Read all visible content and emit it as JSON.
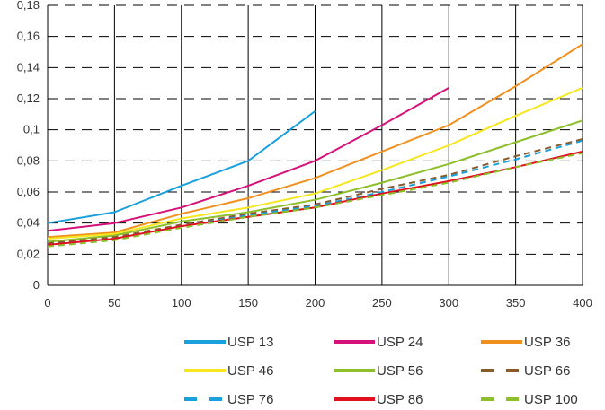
{
  "chart_data": {
    "type": "line",
    "title": "",
    "xlabel": "",
    "ylabel": "",
    "xlim": [
      0,
      400
    ],
    "ylim": [
      0,
      0.18
    ],
    "x_ticks": [
      "0",
      "50",
      "100",
      "150",
      "200",
      "250",
      "300",
      "350",
      "400"
    ],
    "y_ticks": [
      "0",
      "0,02",
      "0,04",
      "0,06",
      "0,08",
      "0,1",
      "0,12",
      "0,14",
      "0,16",
      "0,18"
    ],
    "grid": true,
    "legend_position": "bottom",
    "series": [
      {
        "name": "USP 13",
        "color": "#1aa0dc",
        "dashed": false,
        "x": [
          0,
          50,
          100,
          150,
          200
        ],
        "y": [
          0.04,
          0.047,
          0.064,
          0.08,
          0.112
        ]
      },
      {
        "name": "USP 24",
        "color": "#d6127a",
        "dashed": false,
        "x": [
          0,
          50,
          100,
          150,
          200,
          250,
          300
        ],
        "y": [
          0.035,
          0.04,
          0.05,
          0.064,
          0.08,
          0.103,
          0.127
        ]
      },
      {
        "name": "USP 36",
        "color": "#f0901e",
        "dashed": false,
        "x": [
          0,
          50,
          100,
          150,
          200,
          250,
          300,
          350,
          400
        ],
        "y": [
          0.031,
          0.034,
          0.046,
          0.056,
          0.069,
          0.086,
          0.103,
          0.128,
          0.155
        ]
      },
      {
        "name": "USP 46",
        "color": "#f5e61e",
        "dashed": false,
        "x": [
          0,
          50,
          100,
          150,
          200,
          250,
          300,
          350,
          400
        ],
        "y": [
          0.03,
          0.033,
          0.043,
          0.05,
          0.059,
          0.074,
          0.09,
          0.109,
          0.127
        ]
      },
      {
        "name": "USP 56",
        "color": "#8cbf2a",
        "dashed": false,
        "x": [
          0,
          50,
          100,
          150,
          200,
          250,
          300,
          350,
          400
        ],
        "y": [
          0.028,
          0.032,
          0.041,
          0.047,
          0.055,
          0.066,
          0.078,
          0.092,
          0.106
        ]
      },
      {
        "name": "USP 66",
        "color": "#8b5a2b",
        "dashed": true,
        "x": [
          0,
          50,
          100,
          150,
          200,
          250,
          300,
          350,
          400
        ],
        "y": [
          0.027,
          0.031,
          0.039,
          0.046,
          0.052,
          0.062,
          0.071,
          0.083,
          0.094
        ]
      },
      {
        "name": "USP 76",
        "color": "#1aa0dc",
        "dashed": true,
        "x": [
          0,
          50,
          100,
          150,
          200,
          250,
          300,
          350,
          400
        ],
        "y": [
          0.026,
          0.03,
          0.038,
          0.045,
          0.051,
          0.06,
          0.07,
          0.081,
          0.093
        ]
      },
      {
        "name": "USP 86",
        "color": "#e0101e",
        "dashed": false,
        "x": [
          0,
          50,
          100,
          150,
          200,
          250,
          300,
          350,
          400
        ],
        "y": [
          0.026,
          0.03,
          0.038,
          0.044,
          0.05,
          0.059,
          0.067,
          0.076,
          0.086
        ]
      },
      {
        "name": "USP 100",
        "color": "#8cbf2a",
        "dashed": true,
        "x": [
          0,
          50,
          100,
          150,
          200,
          250,
          300,
          350,
          400
        ],
        "y": [
          0.025,
          0.029,
          0.037,
          0.044,
          0.05,
          0.058,
          0.066,
          0.076,
          0.085
        ]
      }
    ]
  }
}
